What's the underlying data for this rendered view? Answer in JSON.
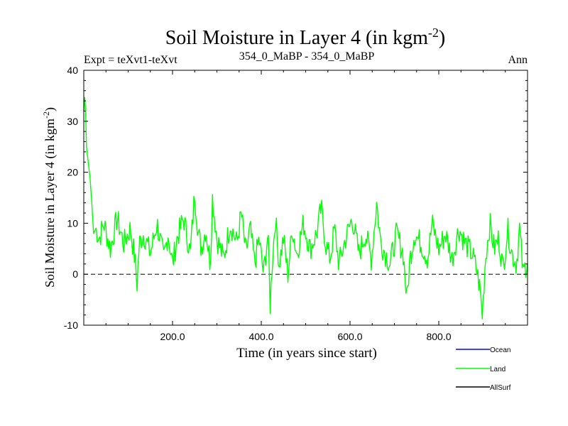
{
  "chart_data": {
    "type": "line",
    "title": "Soil Moisture in Layer 4 (in kgm",
    "title_sup": "-2",
    "title_end": ")",
    "subtitle_left": "Expt = teXvt1-teXvt",
    "subtitle_center": "354_0_MaBP - 354_0_MaBP",
    "subtitle_right": "Ann",
    "xlabel": "Time (in years since start)",
    "ylabel": "Soil Moisture in Layer 4 (in kgm",
    "ylabel_sup": "-2",
    "ylabel_end": ")",
    "xlim": [
      0,
      1000
    ],
    "ylim": [
      -10,
      40
    ],
    "x_ticks": [
      200,
      400,
      600,
      800
    ],
    "x_tick_labels": [
      "200.0",
      "400.0",
      "600.0",
      "800.0"
    ],
    "y_ticks": [
      -10,
      0,
      10,
      20,
      30,
      40
    ],
    "y_tick_labels": [
      "-10",
      "0",
      "10",
      "20",
      "30",
      "40"
    ],
    "reference_line": 0,
    "legend": [
      {
        "name": "Ocean",
        "color": "#0000ff"
      },
      {
        "name": "Land",
        "color": "#00ff00"
      },
      {
        "name": "AllSurf",
        "color": "#000000"
      }
    ],
    "series": [
      {
        "name": "Land",
        "color": "#00ff00",
        "x": [
          0,
          3,
          6,
          10,
          14,
          18,
          22,
          27,
          35,
          45,
          60,
          75,
          90,
          105,
          115,
          120,
          125,
          135,
          150,
          165,
          180,
          190,
          200,
          210,
          225,
          240,
          250,
          258,
          265,
          275,
          285,
          290,
          300,
          315,
          330,
          345,
          355,
          365,
          375,
          385,
          395,
          405,
          415,
          420,
          425,
          432,
          440,
          450,
          460,
          470,
          480,
          495,
          510,
          525,
          535,
          545,
          555,
          565,
          575,
          590,
          605,
          620,
          635,
          648,
          660,
          668,
          675,
          690,
          705,
          720,
          728,
          735,
          745,
          760,
          775,
          785,
          800,
          815,
          830,
          845,
          860,
          875,
          885,
          893,
          898,
          905,
          915,
          925,
          935,
          945,
          955,
          965,
          975,
          982,
          990,
          1000
        ],
        "y": [
          32,
          36,
          25,
          22,
          19,
          14,
          8,
          9,
          7,
          10,
          5,
          11,
          6,
          9,
          3,
          -2,
          6,
          8,
          4,
          10,
          3,
          8,
          2,
          7,
          11,
          4,
          16,
          8,
          5,
          9,
          2,
          15,
          7,
          3,
          10,
          6,
          12,
          4,
          9,
          2,
          7,
          0,
          8,
          -6,
          3,
          11,
          2,
          7,
          0,
          9,
          4,
          10,
          5,
          8,
          13,
          6,
          3,
          9,
          2,
          7,
          11,
          4,
          8,
          3,
          14,
          7,
          5,
          2,
          8,
          4,
          -5,
          3,
          8,
          6,
          3,
          10,
          5,
          8,
          3,
          9,
          6,
          4,
          1,
          -3,
          -8,
          3,
          10,
          5,
          7,
          1,
          9,
          4,
          2,
          9,
          0,
          3
        ]
      }
    ]
  }
}
